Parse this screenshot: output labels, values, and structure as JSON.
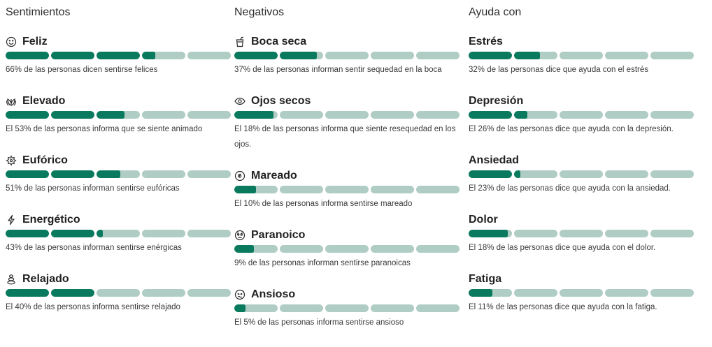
{
  "colors": {
    "fill": "#0a7a5e",
    "track": "#afcdc4"
  },
  "segments_per_bar": 5,
  "columns": [
    {
      "title": "Sentimientos",
      "items": [
        {
          "icon": "smile-icon",
          "label": "Feliz",
          "value": 66,
          "description": "66% de las personas dicen sentirse felices"
        },
        {
          "icon": "leaves-icon",
          "label": "Elevado",
          "value": 53,
          "description": "El 53% de las personas informa que se siente animado"
        },
        {
          "icon": "starburst-icon",
          "label": "Eufórico",
          "value": 51,
          "description": "51% de las personas informan sentirse eufóricas"
        },
        {
          "icon": "lightning-icon",
          "label": "Energético",
          "value": 43,
          "description": "43% de las personas informan sentirse enérgicas"
        },
        {
          "icon": "stones-icon",
          "label": "Relajado",
          "value": 40,
          "description": "El 40% de las personas informa sentirse relajado"
        }
      ]
    },
    {
      "title": "Negativos",
      "items": [
        {
          "icon": "drink-icon",
          "label": "Boca seca",
          "value": 37,
          "description": "37% de las personas informan sentir sequedad en la boca"
        },
        {
          "icon": "eye-icon",
          "label": "Ojos secos",
          "value": 18,
          "description": "El 18% de las personas informa que siente resequedad en los ojos."
        },
        {
          "icon": "spiral-icon",
          "label": "Mareado",
          "value": 10,
          "description": "El 10% de las personas informa sentirse mareado"
        },
        {
          "icon": "worried-face-icon",
          "label": "Paranoico",
          "value": 9,
          "description": "9% de las personas informan sentirse paranoicas"
        },
        {
          "icon": "anxious-face-icon",
          "label": "Ansioso",
          "value": 5,
          "description": "El 5% de las personas informa sentirse ansioso"
        }
      ]
    },
    {
      "title": "Ayuda con",
      "items": [
        {
          "icon": "",
          "label": "Estrés",
          "value": 32,
          "description": "32% de las personas dice que ayuda con el estrés"
        },
        {
          "icon": "",
          "label": "Depresión",
          "value": 26,
          "description": "El 26% de las personas dice que ayuda con la depresión."
        },
        {
          "icon": "",
          "label": "Ansiedad",
          "value": 23,
          "description": "El 23% de las personas dice que ayuda con la ansiedad."
        },
        {
          "icon": "",
          "label": "Dolor",
          "value": 18,
          "description": "El 18% de las personas dice que ayuda con el dolor."
        },
        {
          "icon": "",
          "label": "Fatiga",
          "value": 11,
          "description": "El 11% de las personas dice que ayuda con la fatiga."
        }
      ]
    }
  ]
}
